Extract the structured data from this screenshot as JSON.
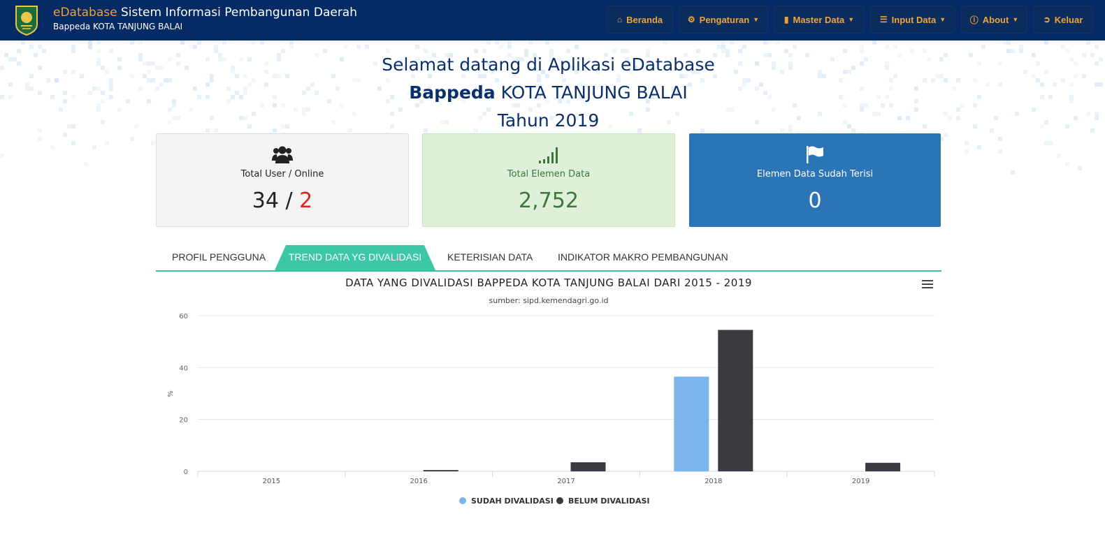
{
  "header": {
    "brand_highlight": "eDatabase",
    "brand_rest": " Sistem Informasi Pembangunan Daerah",
    "subtitle": "Bappeda KOTA TANJUNG BALAI",
    "accent_color": "#f0a23a",
    "bg_color": "#062a63"
  },
  "nav": [
    {
      "label": "Beranda",
      "icon": "home-icon",
      "dropdown": false
    },
    {
      "label": "Pengaturan",
      "icon": "cogs-icon",
      "dropdown": true
    },
    {
      "label": "Master Data",
      "icon": "folder-icon",
      "dropdown": true
    },
    {
      "label": "Input Data",
      "icon": "server-icon",
      "dropdown": true
    },
    {
      "label": "About",
      "icon": "info-icon",
      "dropdown": true
    },
    {
      "label": "Keluar",
      "icon": "sign-out-icon",
      "dropdown": false
    }
  ],
  "welcome": {
    "line1": "Selamat datang di Aplikasi eDatabase",
    "line2_bold": "Bappeda",
    "line2_rest": " KOTA TANJUNG BALAI",
    "line3": "Tahun 2019"
  },
  "cards": {
    "users": {
      "title": "Total User / Online",
      "total": "34",
      "separator": " / ",
      "online": "2",
      "icon": "users-icon"
    },
    "elements": {
      "title": "Total Elemen Data",
      "value": "2,752",
      "icon": "signal-icon"
    },
    "filled": {
      "title": "Elemen Data Sudah Terisi",
      "value": "0",
      "icon": "flag-icon"
    }
  },
  "tabs": [
    {
      "label": "PROFIL PENGGUNA",
      "active": false
    },
    {
      "label": "TREND DATA YG DIVALIDASI",
      "active": true
    },
    {
      "label": "KETERISIAN DATA",
      "active": false
    },
    {
      "label": "INDIKATOR MAKRO PEMBANGUNAN",
      "active": false
    }
  ],
  "chart_data": {
    "type": "bar",
    "title": "DATA YANG DIVALIDASI BAPPEDA KOTA TANJUNG BALAI DARI 2015 - 2019",
    "subtitle": "sumber: sipd.kemendagri.go.id",
    "categories": [
      "2015",
      "2016",
      "2017",
      "2018",
      "2019"
    ],
    "series": [
      {
        "name": "SUDAH DIVALIDASI",
        "color": "#7cb5ec",
        "values": [
          0,
          0,
          0,
          36.5,
          0
        ]
      },
      {
        "name": "BELUM DIVALIDASI",
        "color": "#3a3a40",
        "values": [
          0,
          0.5,
          3.5,
          54.5,
          3.3
        ]
      }
    ],
    "ylabel": "%",
    "ylim": [
      0,
      60
    ],
    "yticks": [
      0,
      20,
      40,
      60
    ],
    "grid": true,
    "legend": "bottom-center"
  }
}
